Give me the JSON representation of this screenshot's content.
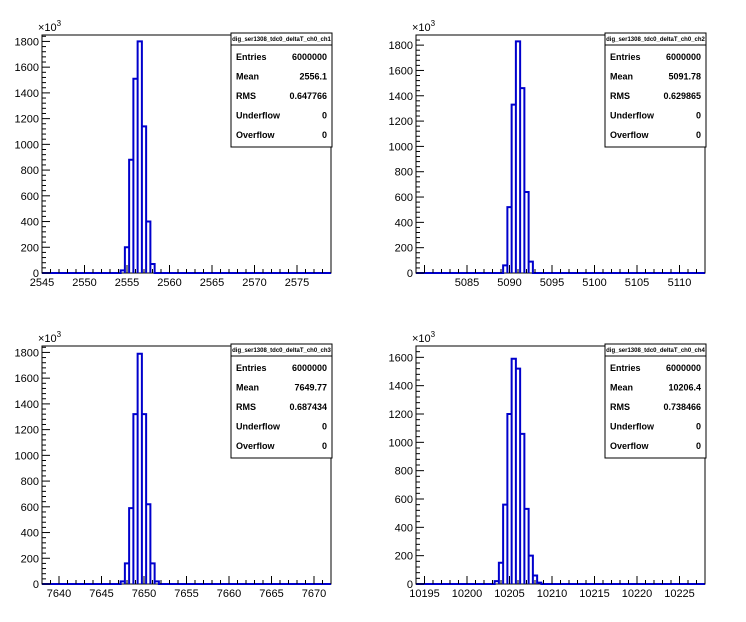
{
  "chart_data": [
    {
      "type": "bar",
      "title": "",
      "xlabel": "",
      "ylabel": "",
      "y_exponent_label": "×10",
      "y_exponent": "3",
      "xlim": [
        2545,
        2579
      ],
      "ylim": [
        0,
        1850
      ],
      "x_ticks": [
        2545,
        2550,
        2555,
        2560,
        2565,
        2570,
        2575
      ],
      "y_ticks": [
        0,
        200,
        400,
        600,
        800,
        1000,
        1200,
        1400,
        1600,
        1800
      ],
      "bin_width": 0.5,
      "bins": [
        {
          "x": 2554.5,
          "value": 20
        },
        {
          "x": 2555.0,
          "value": 200
        },
        {
          "x": 2555.5,
          "value": 880
        },
        {
          "x": 2556.0,
          "value": 1510
        },
        {
          "x": 2556.5,
          "value": 1800
        },
        {
          "x": 2557.0,
          "value": 1140
        },
        {
          "x": 2557.5,
          "value": 400
        },
        {
          "x": 2558.0,
          "value": 70
        }
      ],
      "color": "#0000cc",
      "stats": {
        "name": "dig_ser1308_tdc0_deltaT_ch0_ch1",
        "rows": [
          {
            "label": "Entries",
            "value": "6000000"
          },
          {
            "label": "Mean",
            "value": "2556.1"
          },
          {
            "label": "RMS",
            "value": "0.647766"
          },
          {
            "label": "Underflow",
            "value": "0"
          },
          {
            "label": "Overflow",
            "value": "0"
          }
        ]
      }
    },
    {
      "type": "bar",
      "title": "",
      "xlabel": "",
      "ylabel": "",
      "y_exponent_label": "×10",
      "y_exponent": "3",
      "xlim": [
        5079,
        5113
      ],
      "ylim": [
        0,
        1880
      ],
      "x_ticks": [
        5085,
        5090,
        5095,
        5100,
        5105,
        5110
      ],
      "y_ticks": [
        0,
        200,
        400,
        600,
        800,
        1000,
        1200,
        1400,
        1600,
        1800
      ],
      "bin_width": 0.5,
      "bins": [
        {
          "x": 5089.5,
          "value": 60
        },
        {
          "x": 5090.0,
          "value": 520
        },
        {
          "x": 5090.5,
          "value": 1330
        },
        {
          "x": 5091.0,
          "value": 1830
        },
        {
          "x": 5091.5,
          "value": 1460
        },
        {
          "x": 5092.0,
          "value": 640
        },
        {
          "x": 5092.5,
          "value": 90
        }
      ],
      "color": "#0000cc",
      "stats": {
        "name": "dig_ser1308_tdc0_deltaT_ch0_ch2",
        "rows": [
          {
            "label": "Entries",
            "value": "6000000"
          },
          {
            "label": "Mean",
            "value": "5091.78"
          },
          {
            "label": "RMS",
            "value": "0.629865"
          },
          {
            "label": "Underflow",
            "value": "0"
          },
          {
            "label": "Overflow",
            "value": "0"
          }
        ]
      }
    },
    {
      "type": "bar",
      "title": "",
      "xlabel": "",
      "ylabel": "",
      "y_exponent_label": "×10",
      "y_exponent": "3",
      "xlim": [
        7638,
        7672
      ],
      "ylim": [
        0,
        1850
      ],
      "x_ticks": [
        7640,
        7645,
        7650,
        7655,
        7660,
        7665,
        7670
      ],
      "y_ticks": [
        0,
        200,
        400,
        600,
        800,
        1000,
        1200,
        1400,
        1600,
        1800
      ],
      "bin_width": 0.5,
      "bins": [
        {
          "x": 7647.5,
          "value": 20
        },
        {
          "x": 7648.0,
          "value": 160
        },
        {
          "x": 7648.5,
          "value": 590
        },
        {
          "x": 7649.0,
          "value": 1320
        },
        {
          "x": 7649.5,
          "value": 1790
        },
        {
          "x": 7650.0,
          "value": 1320
        },
        {
          "x": 7650.5,
          "value": 620
        },
        {
          "x": 7651.0,
          "value": 160
        },
        {
          "x": 7651.5,
          "value": 20
        }
      ],
      "color": "#0000cc",
      "stats": {
        "name": "dig_ser1308_tdc0_deltaT_ch0_ch3",
        "rows": [
          {
            "label": "Entries",
            "value": "6000000"
          },
          {
            "label": "Mean",
            "value": "7649.77"
          },
          {
            "label": "RMS",
            "value": "0.687434"
          },
          {
            "label": "Underflow",
            "value": "0"
          },
          {
            "label": "Overflow",
            "value": "0"
          }
        ]
      }
    },
    {
      "type": "bar",
      "title": "",
      "xlabel": "",
      "ylabel": "",
      "y_exponent_label": "×10",
      "y_exponent": "3",
      "xlim": [
        10194,
        10228
      ],
      "ylim": [
        0,
        1680
      ],
      "x_ticks": [
        10195,
        10200,
        10205,
        10210,
        10215,
        10220,
        10225
      ],
      "y_ticks": [
        0,
        200,
        400,
        600,
        800,
        1000,
        1200,
        1400,
        1600
      ],
      "bin_width": 0.5,
      "bins": [
        {
          "x": 10203.5,
          "value": 20
        },
        {
          "x": 10204.0,
          "value": 150
        },
        {
          "x": 10204.5,
          "value": 560
        },
        {
          "x": 10205.0,
          "value": 1200
        },
        {
          "x": 10205.5,
          "value": 1590
        },
        {
          "x": 10206.0,
          "value": 1520
        },
        {
          "x": 10206.5,
          "value": 1060
        },
        {
          "x": 10207.0,
          "value": 530
        },
        {
          "x": 10207.5,
          "value": 200
        },
        {
          "x": 10208.0,
          "value": 60
        },
        {
          "x": 10208.5,
          "value": 10
        }
      ],
      "color": "#0000cc",
      "stats": {
        "name": "dig_ser1308_tdc0_deltaT_ch0_ch4",
        "rows": [
          {
            "label": "Entries",
            "value": "6000000"
          },
          {
            "label": "Mean",
            "value": "10206.4"
          },
          {
            "label": "RMS",
            "value": "0.738466"
          },
          {
            "label": "Underflow",
            "value": "0"
          },
          {
            "label": "Overflow",
            "value": "0"
          }
        ]
      }
    }
  ]
}
